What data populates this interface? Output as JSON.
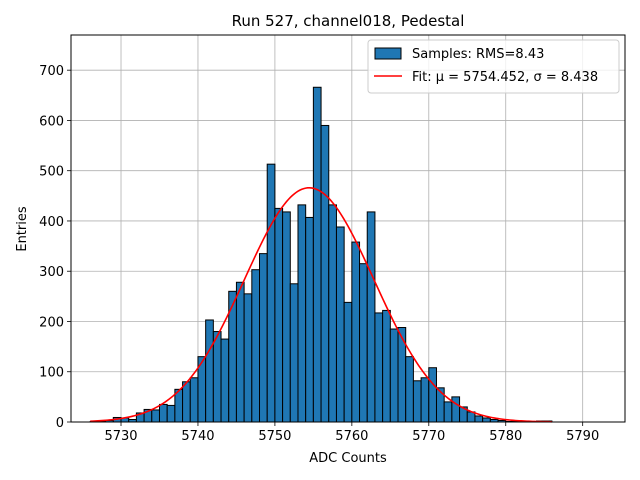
{
  "chart_data": {
    "type": "bar",
    "title": "Run 527, channel018, Pedestal",
    "xlabel": "ADC Counts",
    "ylabel": "Entries",
    "xlim": [
      5723.5,
      5795.5
    ],
    "ylim": [
      0,
      770
    ],
    "xticks": [
      5730,
      5740,
      5750,
      5760,
      5770,
      5780,
      5790
    ],
    "yticks": [
      0,
      100,
      200,
      300,
      400,
      500,
      600,
      700
    ],
    "grid": true,
    "legend_position": "top-right",
    "colors": {
      "bar": "#1f77b4",
      "edge": "#000000",
      "fit": "#ff0000",
      "grid": "#b0b0b0"
    },
    "series": [
      {
        "name": "Samples: RMS=8.43",
        "kind": "histogram",
        "bin_width": 1,
        "bin_starts": [
          5726,
          5727,
          5728,
          5729,
          5730,
          5731,
          5732,
          5733,
          5734,
          5735,
          5736,
          5737,
          5738,
          5739,
          5740,
          5741,
          5742,
          5743,
          5744,
          5745,
          5746,
          5747,
          5748,
          5749,
          5750,
          5751,
          5752,
          5753,
          5754,
          5755,
          5756,
          5757,
          5758,
          5759,
          5760,
          5761,
          5762,
          5763,
          5764,
          5765,
          5766,
          5767,
          5768,
          5769,
          5770,
          5771,
          5772,
          5773,
          5774,
          5775,
          5776,
          5777,
          5778,
          5779,
          5780,
          5781,
          5782,
          5783,
          5784,
          5785
        ],
        "values": [
          1,
          2,
          3,
          9,
          8,
          5,
          18,
          25,
          24,
          35,
          33,
          65,
          80,
          88,
          130,
          203,
          180,
          165,
          260,
          278,
          255,
          303,
          335,
          513,
          425,
          418,
          275,
          432,
          407,
          666,
          590,
          432,
          388,
          238,
          358,
          315,
          418,
          217,
          222,
          185,
          188,
          130,
          82,
          88,
          108,
          68,
          40,
          50,
          30,
          20,
          12,
          8,
          5,
          3,
          1,
          1,
          0,
          0,
          2,
          2
        ]
      },
      {
        "name": "Fit: μ = 5754.452, σ = 8.438",
        "kind": "gaussian",
        "mu": 5754.452,
        "sigma": 8.438,
        "amplitude": 466,
        "x_range": [
          5726,
          5786
        ]
      }
    ]
  }
}
